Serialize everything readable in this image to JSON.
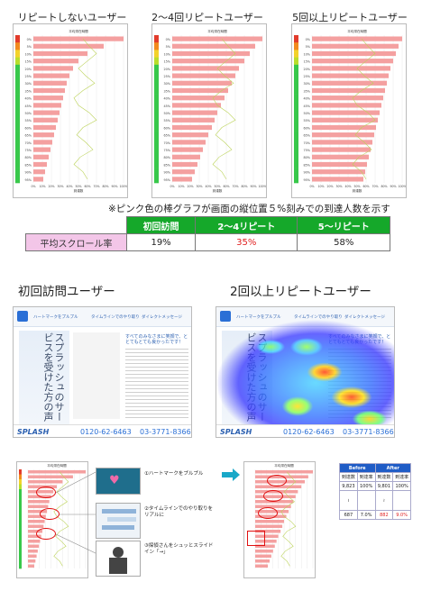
{
  "titles": {
    "chart1": "リピートしないユーザー",
    "chart2": "2～4回リピートユーザー",
    "chart3": "5回以上リピートユーザー",
    "heat1": "初回訪問ユーザー",
    "heat2": "2回以上リピートユーザー"
  },
  "chart_note": "※ピンク色の棒グラフが画面の縦位置５%刻みでの到達人数を示す",
  "summary": {
    "corner": "",
    "headers": [
      "初回訪問",
      "2～4リピート",
      "5～リピート"
    ],
    "row_label": "平均スクロール率",
    "values": [
      "19%",
      "35%",
      "58%"
    ],
    "highlight_index": 1
  },
  "mini_chart": {
    "header": "平均滞在時間",
    "footer": "到達数",
    "x_ticks": [
      "0%",
      "10%",
      "20%",
      "30%",
      "40%",
      "50%",
      "60%",
      "70%",
      "80%",
      "90%",
      "100%"
    ]
  },
  "chart_data": [
    {
      "type": "bar",
      "orientation": "horizontal",
      "title": "リピートしないユーザー",
      "categories": [
        "0%",
        "5%",
        "10%",
        "15%",
        "20%",
        "25%",
        "30%",
        "35%",
        "40%",
        "45%",
        "50%",
        "55%",
        "60%",
        "65%",
        "70%",
        "75%",
        "80%",
        "85%",
        "90%",
        "95%"
      ],
      "values": [
        100,
        78,
        60,
        50,
        44,
        40,
        37,
        35,
        33,
        31,
        29,
        27,
        25,
        23,
        21,
        19,
        17,
        15,
        13,
        11
      ],
      "xlim": [
        0,
        100
      ]
    },
    {
      "type": "bar",
      "orientation": "horizontal",
      "title": "2～4回リピートユーザー",
      "categories": [
        "0%",
        "5%",
        "10%",
        "15%",
        "20%",
        "25%",
        "30%",
        "35%",
        "40%",
        "45%",
        "50%",
        "55%",
        "60%",
        "65%",
        "70%",
        "75%",
        "80%",
        "85%",
        "90%",
        "95%"
      ],
      "values": [
        100,
        92,
        86,
        80,
        74,
        70,
        66,
        62,
        58,
        54,
        50,
        47,
        44,
        40,
        37,
        34,
        31,
        28,
        25,
        22
      ],
      "xlim": [
        0,
        100
      ]
    },
    {
      "type": "bar",
      "orientation": "horizontal",
      "title": "5回以上リピートユーザー",
      "categories": [
        "0%",
        "5%",
        "10%",
        "15%",
        "20%",
        "25%",
        "30%",
        "35%",
        "40%",
        "45%",
        "50%",
        "55%",
        "60%",
        "65%",
        "70%",
        "75%",
        "80%",
        "85%",
        "90%",
        "95%"
      ],
      "values": [
        100,
        96,
        93,
        90,
        87,
        85,
        83,
        81,
        79,
        77,
        75,
        73,
        71,
        69,
        67,
        65,
        63,
        61,
        59,
        57
      ],
      "xlim": [
        0,
        100
      ]
    }
  ],
  "heatmap_page": {
    "nav": [
      "ハートマークをプルプル",
      "タイムラインでのやり取り",
      "ダイレクトメッセージ",
      "探偵さんをシュッとスライドイン"
    ],
    "vertical_title": "スプラッシュのサービスを受けた方の声",
    "headline": "すべてのみなさまに笑顔で、ととてもとても良かったです！",
    "logo": "SPLASH",
    "phone1": "0120-62-6463",
    "phone2": "03-3771-8366"
  },
  "annotations": [
    "①ハートマークをプルプル",
    "②タイムラインでのやり取りをリアルに",
    "③探偵さんをシュッとスライドイン「→」"
  ],
  "before_after": {
    "before": "Before",
    "after": "After",
    "cols": [
      "到達数",
      "到達率",
      "到達数",
      "到達率"
    ],
    "row1": [
      "9,823",
      "100%",
      "9,801",
      "100%"
    ],
    "row2": [
      "687",
      "7.0%",
      "882",
      "9.0%"
    ]
  },
  "colors": {
    "bar": "#f4a0a0",
    "accent_green": "#15a82a",
    "highlight": "#e02020"
  }
}
